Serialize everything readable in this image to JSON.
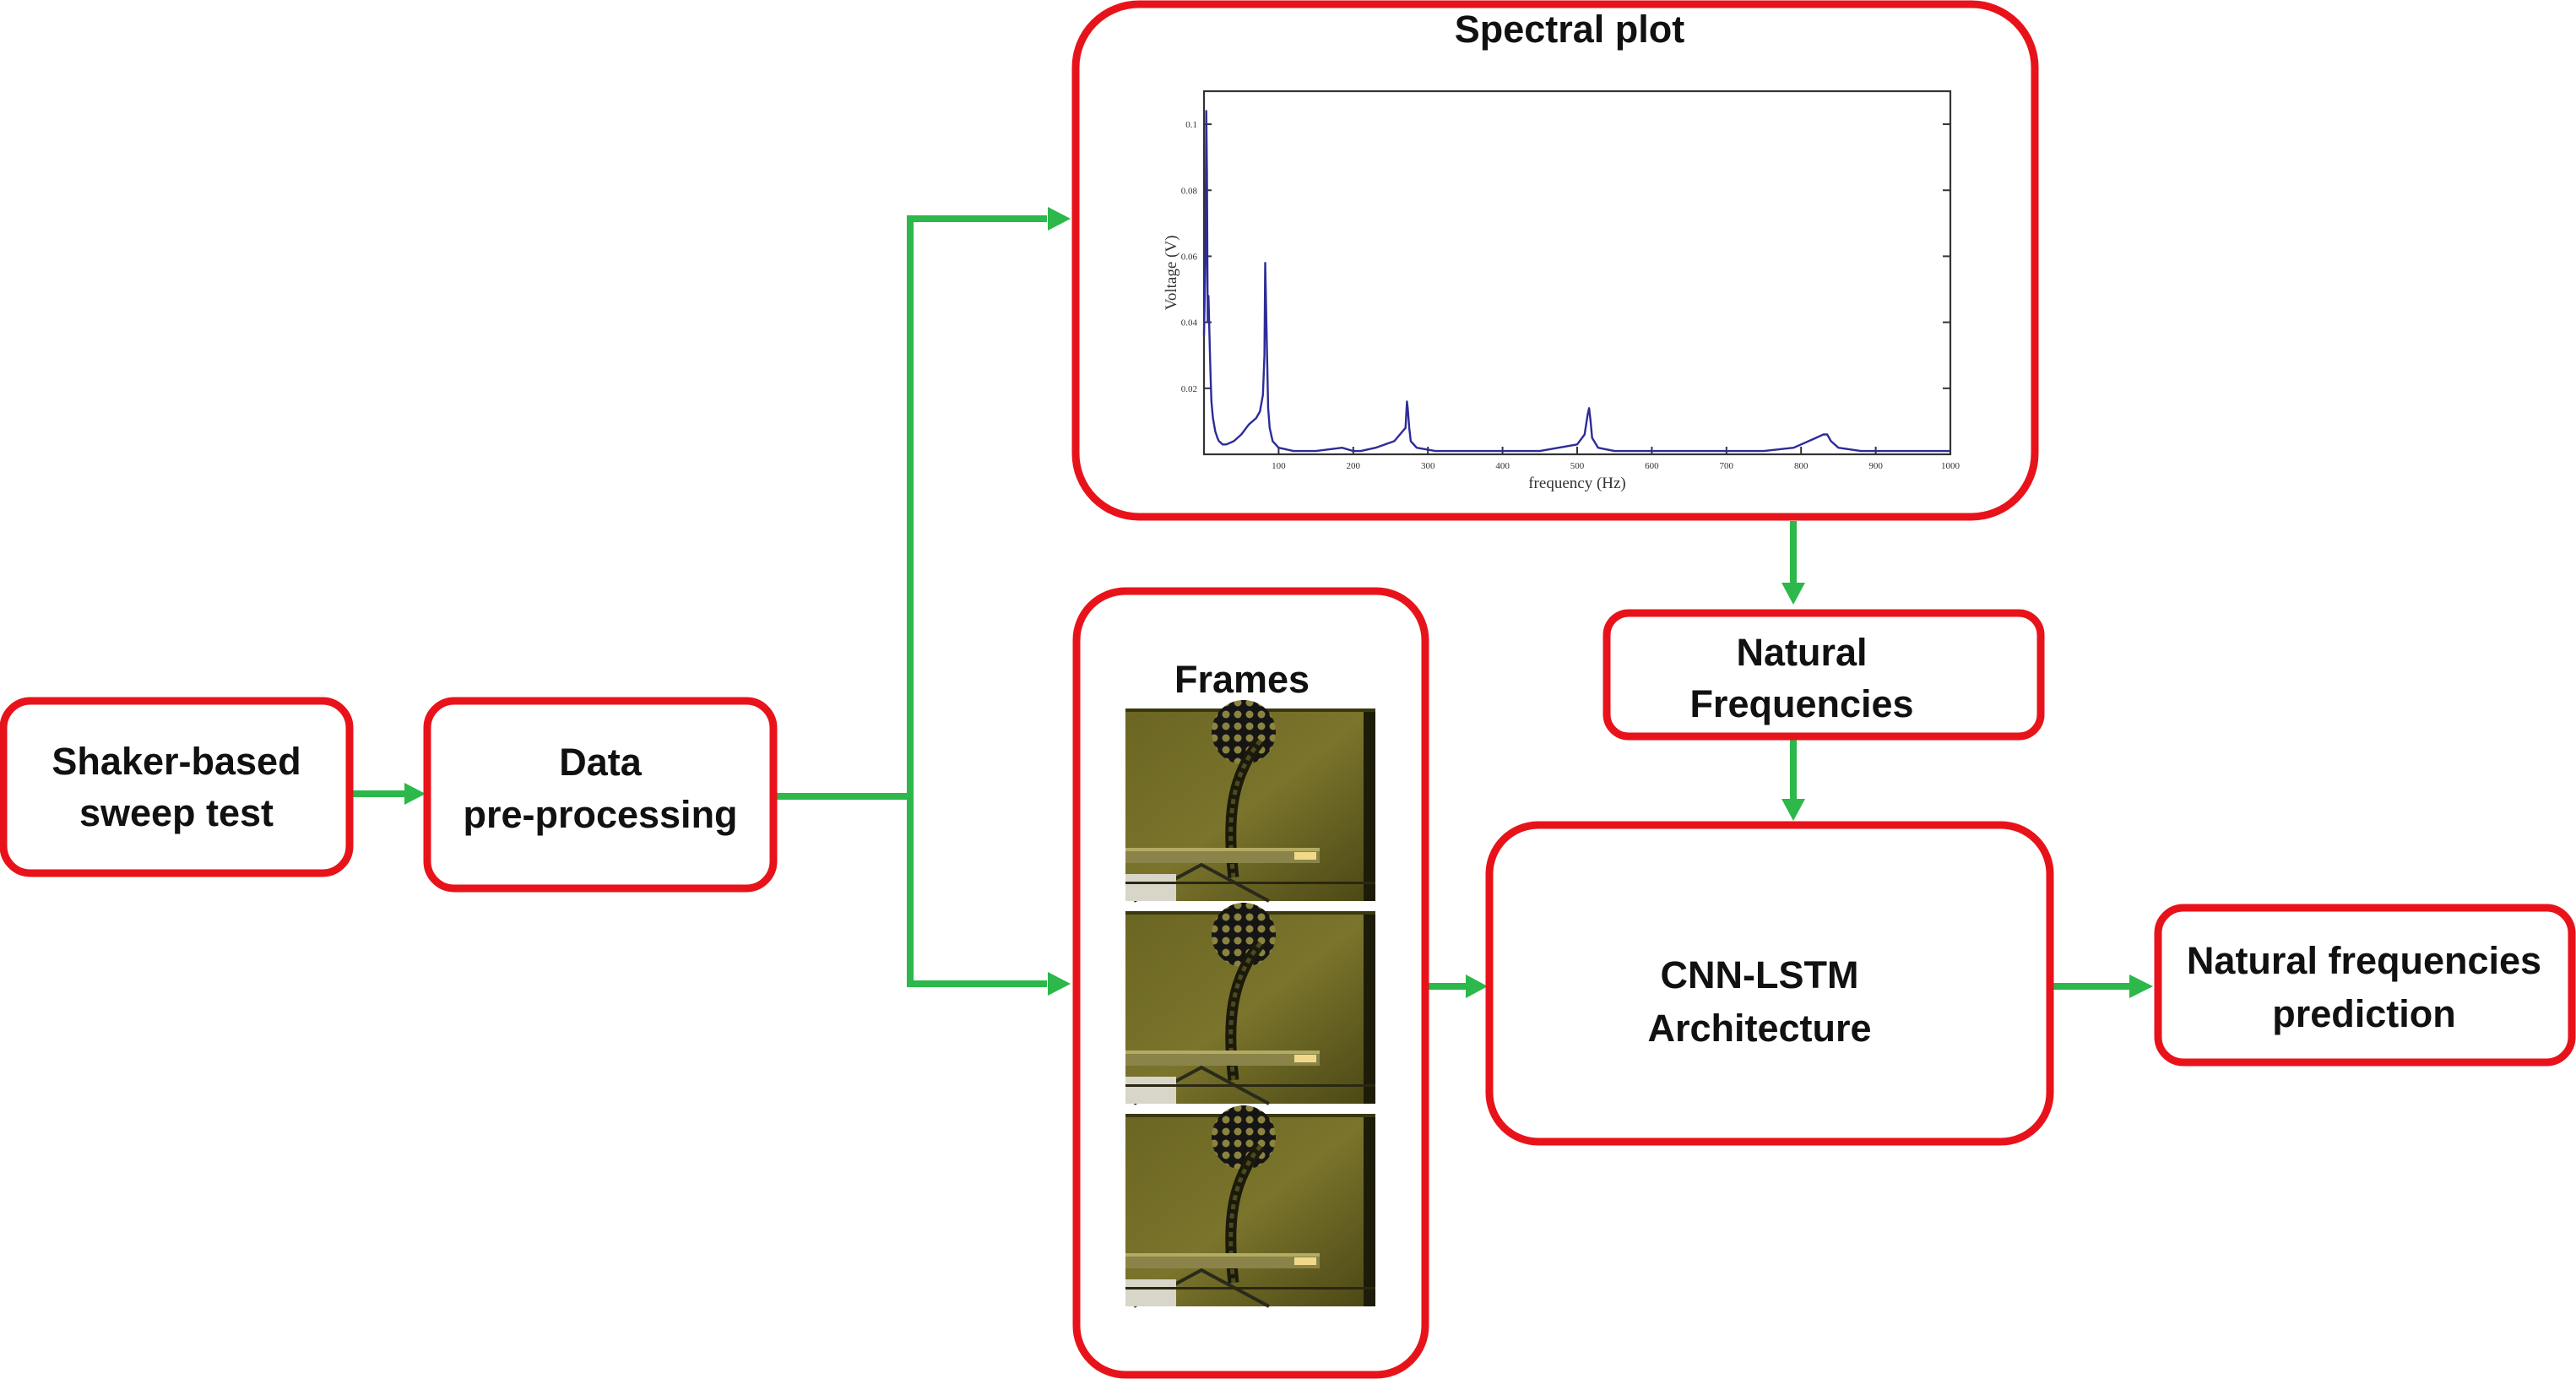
{
  "nodes": {
    "shaker": {
      "lines": [
        "Shaker-based",
        "sweep test"
      ]
    },
    "preprocessing": {
      "lines": [
        "Data",
        "pre-processing"
      ]
    },
    "spectral": {
      "title": "Spectral plot"
    },
    "frames": {
      "title": "Frames"
    },
    "natural": {
      "lines": [
        "Natural",
        "Frequencies"
      ]
    },
    "cnn": {
      "lines": [
        "CNN-LSTM",
        "Architecture"
      ]
    },
    "prediction": {
      "lines": [
        "Natural frequencies",
        "prediction"
      ]
    }
  },
  "edges": [
    {
      "from": "shaker",
      "to": "preprocessing"
    },
    {
      "from": "preprocessing",
      "to": "spectral"
    },
    {
      "from": "preprocessing",
      "to": "frames"
    },
    {
      "from": "spectral",
      "to": "natural"
    },
    {
      "from": "natural",
      "to": "cnn"
    },
    {
      "from": "frames",
      "to": "cnn"
    },
    {
      "from": "cnn",
      "to": "prediction"
    }
  ],
  "colors": {
    "box_border": "#e8131a",
    "arrow": "#2cb84a",
    "plot_line": "#2c2c9a"
  },
  "chart_data": {
    "type": "line",
    "xlabel": "frequency (Hz)",
    "ylabel": "Voltage (V)",
    "xlim": [
      0,
      1000
    ],
    "ylim": [
      0,
      0.11
    ],
    "x_ticks": [
      "100",
      "200",
      "300",
      "400",
      "500",
      "600",
      "700",
      "800",
      "900",
      "1000"
    ],
    "y_ticks": [
      "0.02",
      "0.04",
      "0.06",
      "0.08",
      "0.1"
    ],
    "grid": false,
    "series": [
      {
        "x": [
          0,
          2,
          3,
          4,
          5,
          6,
          8,
          9,
          10,
          12,
          15,
          18,
          20,
          25,
          30,
          40,
          50,
          60,
          70,
          75,
          79,
          81,
          82,
          84,
          86,
          88,
          92,
          100,
          120,
          150,
          185,
          200,
          205,
          210,
          230,
          255,
          270,
          272,
          273,
          275,
          277,
          285,
          310,
          350,
          400,
          450,
          500,
          510,
          514,
          516,
          518,
          520,
          528,
          550,
          600,
          650,
          700,
          750,
          790,
          800,
          820,
          830,
          835,
          840,
          850,
          880,
          920,
          960,
          1000
        ],
        "y": [
          0.036,
          0.06,
          0.104,
          0.085,
          0.04,
          0.048,
          0.03,
          0.022,
          0.016,
          0.011,
          0.007,
          0.005,
          0.004,
          0.003,
          0.003,
          0.004,
          0.006,
          0.009,
          0.011,
          0.013,
          0.018,
          0.03,
          0.058,
          0.035,
          0.014,
          0.008,
          0.004,
          0.002,
          0.001,
          0.001,
          0.002,
          0.001,
          0.001,
          0.001,
          0.002,
          0.004,
          0.008,
          0.016,
          0.014,
          0.008,
          0.004,
          0.002,
          0.001,
          0.001,
          0.001,
          0.001,
          0.003,
          0.006,
          0.012,
          0.014,
          0.01,
          0.005,
          0.002,
          0.001,
          0.001,
          0.001,
          0.001,
          0.001,
          0.002,
          0.003,
          0.005,
          0.006,
          0.006,
          0.004,
          0.002,
          0.001,
          0.001,
          0.001,
          0.001
        ]
      }
    ]
  }
}
